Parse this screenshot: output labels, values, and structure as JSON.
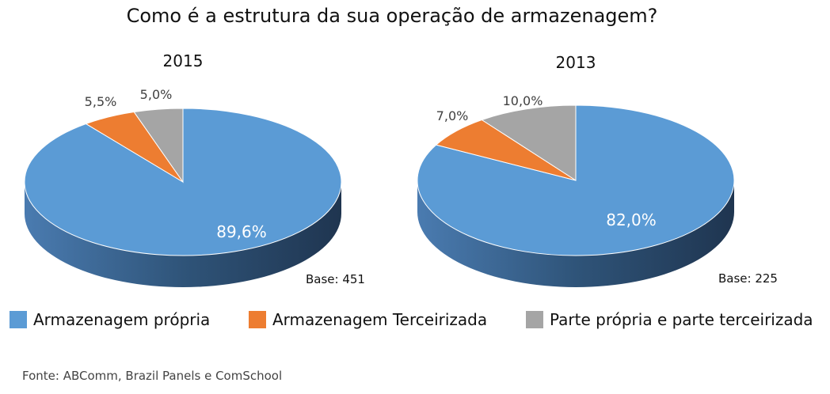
{
  "title": "Como é a estrutura da sua operação de armazenagem?",
  "colors": {
    "propria": "#5b9bd5",
    "terceirizada": "#ed7d31",
    "parte": "#a5a5a5",
    "side": "#2e4a6b"
  },
  "legend": [
    {
      "label": "Armazenagem própria",
      "color": "#5b9bd5"
    },
    {
      "label": "Armazenagem Terceirizada",
      "color": "#ed7d31"
    },
    {
      "label": "Parte própria e parte terceirizada",
      "color": "#a5a5a5"
    }
  ],
  "source": "Fonte: ABComm, Brazil Panels e ComSchool",
  "chart_data": [
    {
      "type": "pie",
      "title": "2015",
      "base_label": "Base: 451",
      "categories": [
        "Armazenagem própria",
        "Armazenagem Terceirizada",
        "Parte própria e parte terceirizada"
      ],
      "values": [
        89.6,
        5.5,
        5.0
      ],
      "data_labels": [
        "89,6%",
        "5,5%",
        "5,0%"
      ]
    },
    {
      "type": "pie",
      "title": "2013",
      "base_label": "Base: 225",
      "categories": [
        "Armazenagem própria",
        "Armazenagem Terceirizada",
        "Parte própria e parte terceirizada"
      ],
      "values": [
        82.0,
        7.0,
        10.0
      ],
      "data_labels": [
        "82,0%",
        "7,0%",
        "10,0%"
      ]
    }
  ]
}
